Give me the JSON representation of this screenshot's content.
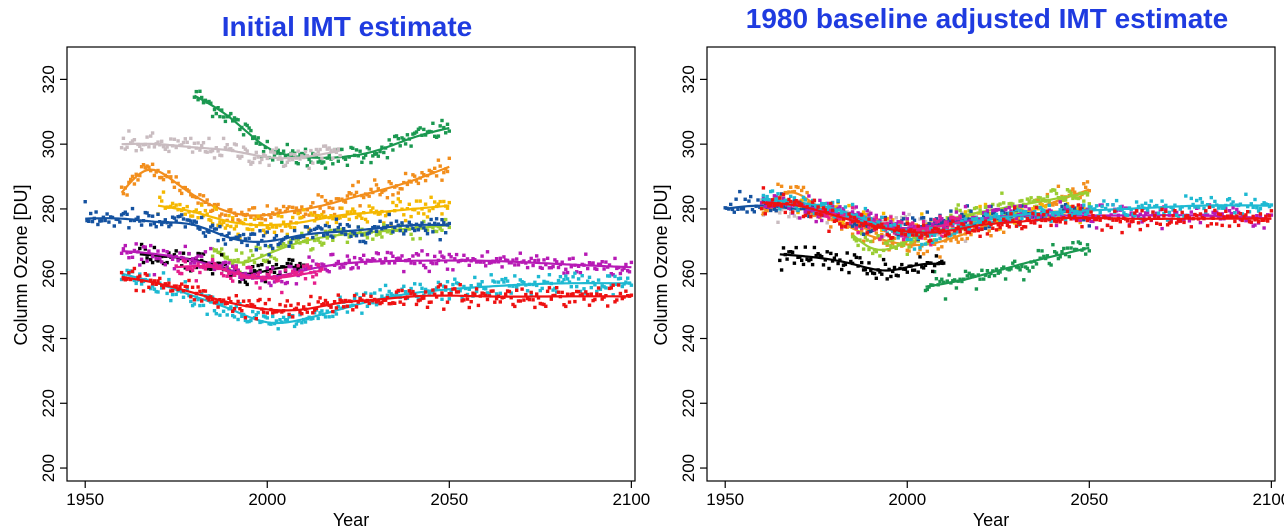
{
  "chart_data": [
    {
      "type": "scatter",
      "title": "Initial IMT estimate",
      "xlabel": "Year",
      "ylabel": "Column Ozone [DU]",
      "xlim": [
        1945,
        2101
      ],
      "ylim": [
        196,
        330
      ],
      "xticks": [
        1950,
        2000,
        2050,
        2100
      ],
      "yticks": [
        200,
        220,
        240,
        260,
        280,
        300,
        320
      ],
      "grid": false,
      "series": [
        {
          "color": "#1a9850",
          "x": [
            1980,
            1990,
            2000,
            2010,
            2020,
            2030,
            2040,
            2050
          ],
          "y": [
            315,
            308,
            299,
            296,
            296,
            298,
            302,
            305
          ],
          "range": [
            1980,
            2050
          ]
        },
        {
          "color": "#c9bcc0",
          "x": [
            1960,
            1970,
            1980,
            1990,
            2000,
            2010,
            2020
          ],
          "y": [
            300,
            300,
            299,
            298,
            296,
            296,
            298
          ],
          "range": [
            1960,
            2020
          ]
        },
        {
          "color": "#f28e1c",
          "x": [
            1960,
            1967,
            1975,
            1985,
            1995,
            2005,
            2015,
            2025,
            2035,
            2050
          ],
          "y": [
            285,
            292,
            288,
            281,
            278,
            279,
            281,
            284,
            287,
            293
          ],
          "range": [
            1960,
            2050
          ]
        },
        {
          "color": "#f5b800",
          "x": [
            1970,
            1980,
            1990,
            2000,
            2010,
            2020,
            2030,
            2040,
            2050
          ],
          "y": [
            281,
            279,
            276,
            275,
            276,
            278,
            279,
            280,
            281
          ],
          "range": [
            1970,
            2050
          ]
        },
        {
          "color": "#9acd32",
          "x": [
            1985,
            1990,
            2000,
            2010,
            2020,
            2030,
            2040,
            2050
          ],
          "y": [
            268,
            264,
            266,
            270,
            272,
            273,
            274,
            275
          ],
          "range": [
            1985,
            2050
          ]
        },
        {
          "color": "#1452a0",
          "x": [
            1950,
            1960,
            1970,
            1980,
            1990,
            2000,
            2010,
            2020,
            2030,
            2040,
            2050
          ],
          "y": [
            277,
            277,
            276,
            275,
            271,
            270,
            272,
            273,
            274,
            275,
            275
          ],
          "range": [
            1950,
            2050
          ]
        },
        {
          "color": "#000000",
          "x": [
            1965,
            1975,
            1985,
            1995,
            2000,
            2005,
            2010
          ],
          "y": [
            266,
            265,
            263,
            260,
            261,
            262,
            262
          ],
          "range": [
            1965,
            2010
          ]
        },
        {
          "color": "#b71ab5",
          "x": [
            1960,
            1970,
            1980,
            1990,
            2000,
            2010,
            2020,
            2040,
            2060,
            2080,
            2100
          ],
          "y": [
            267,
            266,
            264,
            261,
            259,
            261,
            263,
            264,
            264,
            263,
            262
          ],
          "range": [
            1960,
            2100
          ]
        },
        {
          "color": "#e61e8c",
          "x": [
            1975,
            1985,
            1995,
            2005,
            2015
          ],
          "y": [
            262,
            262,
            259,
            259,
            261
          ],
          "range": [
            1975,
            2015
          ]
        },
        {
          "color": "#1eb9d2",
          "x": [
            1960,
            1970,
            1980,
            1990,
            2000,
            2010,
            2020,
            2030,
            2040,
            2060,
            2080,
            2100
          ],
          "y": [
            260,
            257,
            253,
            249,
            245,
            246,
            249,
            252,
            254,
            256,
            257,
            257
          ],
          "range": [
            1960,
            2100
          ]
        },
        {
          "color": "#ee1111",
          "x": [
            1960,
            1970,
            1980,
            1990,
            2000,
            2010,
            2020,
            2030,
            2040,
            2060,
            2080,
            2100
          ],
          "y": [
            259,
            257,
            254,
            251,
            249,
            249,
            251,
            252,
            253,
            253,
            253,
            253
          ],
          "range": [
            1960,
            2100
          ]
        }
      ]
    },
    {
      "type": "scatter",
      "title": "1980 baseline adjusted IMT estimate",
      "xlabel": "Year",
      "ylabel": "Column Ozone [DU]",
      "xlim": [
        1945,
        2101
      ],
      "ylim": [
        196,
        330
      ],
      "xticks": [
        1950,
        2000,
        2050,
        2100
      ],
      "yticks": [
        200,
        220,
        240,
        260,
        280,
        300,
        320
      ],
      "grid": false,
      "series": [
        {
          "color": "#1a9850",
          "x": [
            2005,
            2015,
            2025,
            2035,
            2050
          ],
          "y": [
            256,
            258,
            261,
            264,
            268
          ],
          "range": [
            2005,
            2050
          ]
        },
        {
          "color": "#c9bcc0",
          "x": [
            1960,
            1970,
            1980,
            1990,
            2000,
            2010,
            2020
          ],
          "y": [
            280,
            280,
            279,
            277,
            275,
            275,
            277
          ],
          "range": [
            1960,
            2020
          ]
        },
        {
          "color": "#f28e1c",
          "x": [
            1960,
            1967,
            1975,
            1985,
            1995,
            2005,
            2015,
            2025,
            2035,
            2050
          ],
          "y": [
            278,
            285,
            281,
            274,
            270,
            269,
            272,
            276,
            280,
            286
          ],
          "range": [
            1960,
            2050
          ]
        },
        {
          "color": "#f5b800",
          "x": [
            1970,
            1980,
            1990,
            2000,
            2010,
            2020,
            2030,
            2040,
            2050
          ],
          "y": [
            281,
            279,
            276,
            274,
            275,
            277,
            278,
            279,
            280
          ],
          "range": [
            1970,
            2050
          ]
        },
        {
          "color": "#9acd32",
          "x": [
            1985,
            1990,
            2000,
            2010,
            2020,
            2030,
            2040,
            2050
          ],
          "y": [
            272,
            268,
            270,
            276,
            279,
            281,
            283,
            285
          ],
          "range": [
            1985,
            2050
          ]
        },
        {
          "color": "#1452a0",
          "x": [
            1950,
            1960,
            1970,
            1980,
            1990,
            2000,
            2010,
            2020,
            2030,
            2040,
            2050
          ],
          "y": [
            280,
            281,
            280,
            279,
            275,
            274,
            276,
            277,
            278,
            279,
            279
          ],
          "range": [
            1950,
            2050
          ]
        },
        {
          "color": "#000000",
          "x": [
            1965,
            1975,
            1985,
            1995,
            2000,
            2005,
            2010
          ],
          "y": [
            266,
            265,
            263,
            261,
            262,
            263,
            263
          ],
          "range": [
            1965,
            2010
          ]
        },
        {
          "color": "#b71ab5",
          "x": [
            1960,
            1970,
            1980,
            1990,
            2000,
            2010,
            2020,
            2040,
            2060,
            2080,
            2100
          ],
          "y": [
            282,
            281,
            279,
            276,
            274,
            275,
            277,
            278,
            278,
            278,
            277
          ],
          "range": [
            1960,
            2100
          ]
        },
        {
          "color": "#e61e8c",
          "x": [
            1975,
            1985,
            1995,
            2005,
            2015
          ],
          "y": [
            279,
            277,
            274,
            274,
            276
          ],
          "range": [
            1975,
            2015
          ]
        },
        {
          "color": "#1eb9d2",
          "x": [
            1960,
            1970,
            1980,
            1990,
            2000,
            2010,
            2020,
            2030,
            2040,
            2060,
            2080,
            2100
          ],
          "y": [
            283,
            282,
            280,
            276,
            272,
            273,
            276,
            278,
            279,
            280,
            281,
            281
          ],
          "range": [
            1960,
            2100
          ]
        },
        {
          "color": "#ee1111",
          "x": [
            1960,
            1970,
            1980,
            1990,
            2000,
            2010,
            2020,
            2030,
            2040,
            2060,
            2080,
            2100
          ],
          "y": [
            282,
            281,
            278,
            275,
            273,
            273,
            275,
            276,
            277,
            277,
            277,
            277
          ],
          "range": [
            1960,
            2100
          ]
        }
      ]
    }
  ]
}
